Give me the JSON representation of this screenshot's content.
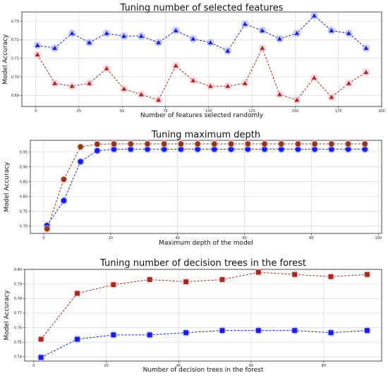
{
  "chart_data": [
    {
      "type": "line",
      "title": "Tuning number of selected features",
      "xlabel": "Number of features selected randomly",
      "ylabel": "Model Accuracy",
      "xlim": [
        -8,
        200
      ],
      "ylim": [
        0.684,
        0.735
      ],
      "xticks": [
        0,
        25,
        50,
        75,
        100,
        125,
        150,
        175,
        200
      ],
      "yticks": [
        0.69,
        0.7,
        0.71,
        0.72,
        0.73
      ],
      "ytick_labels": [
        "0.69",
        "0.70",
        "0.71",
        "0.72",
        "0.73"
      ],
      "grid": true,
      "marker": "triangle",
      "x": [
        1,
        11,
        21,
        31,
        41,
        51,
        61,
        71,
        81,
        91,
        101,
        111,
        121,
        131,
        141,
        151,
        161,
        171,
        181,
        191
      ],
      "series": [
        {
          "color": "#1f1fcf",
          "glow": "#9aa8ff",
          "values": [
            0.717,
            0.7155,
            0.7235,
            0.7185,
            0.7235,
            0.722,
            0.722,
            0.7185,
            0.725,
            0.7205,
            0.7185,
            0.714,
            0.7285,
            0.725,
            0.7205,
            0.7235,
            0.733,
            0.725,
            0.7235,
            0.7155
          ]
        },
        {
          "color": "#a02d1e",
          "glow": "#ffb6c8",
          "values": [
            0.712,
            0.6965,
            0.695,
            0.6965,
            0.7045,
            0.6935,
            0.6905,
            0.6875,
            0.706,
            0.698,
            0.695,
            0.695,
            0.6965,
            0.7155,
            0.6905,
            0.6875,
            0.6995,
            0.689,
            0.6965,
            0.7025
          ]
        }
      ]
    },
    {
      "type": "line",
      "title": "Tuning maximum depth",
      "xlabel": "Maximum depth of the model",
      "ylabel": "Model Accuracy",
      "xlim": [
        -4,
        101
      ],
      "ylim": [
        0.675,
        0.99
      ],
      "xticks": [
        0,
        20,
        40,
        60,
        80,
        100
      ],
      "yticks": [
        0.7,
        0.75,
        0.8,
        0.85,
        0.9,
        0.95
      ],
      "ytick_labels": [
        "0.70",
        "0.75",
        "0.80",
        "0.85",
        "0.90",
        "0.95"
      ],
      "grid": true,
      "marker": "circle",
      "x": [
        1,
        6,
        11,
        16,
        21,
        26,
        31,
        36,
        41,
        46,
        51,
        56,
        61,
        66,
        71,
        76,
        81,
        86,
        91,
        96
      ],
      "series": [
        {
          "color": "#1a1ae6",
          "glow": "#9aa8ff",
          "values": [
            0.702,
            0.786,
            0.918,
            0.955,
            0.96,
            0.96,
            0.96,
            0.96,
            0.96,
            0.96,
            0.96,
            0.96,
            0.96,
            0.96,
            0.96,
            0.96,
            0.96,
            0.96,
            0.96,
            0.96
          ]
        },
        {
          "color": "#8b3a14",
          "glow": "#ffb6c8",
          "values": [
            0.69,
            0.858,
            0.968,
            0.977,
            0.978,
            0.978,
            0.978,
            0.978,
            0.978,
            0.978,
            0.978,
            0.978,
            0.978,
            0.978,
            0.978,
            0.978,
            0.978,
            0.978,
            0.978,
            0.978
          ]
        }
      ]
    },
    {
      "type": "line",
      "title": "Tuning number of decision trees in the forest",
      "xlabel": "Number of decision trees in the forest",
      "ylabel": "Model Accuracy",
      "xlim": [
        -2.5,
        96
      ],
      "ylim": [
        0.737,
        0.8
      ],
      "xticks": [
        0,
        20,
        40,
        60,
        80
      ],
      "yticks": [
        0.74,
        0.75,
        0.76,
        0.77,
        0.78,
        0.79,
        0.8
      ],
      "ytick_labels": [
        "0.74",
        "0.75",
        "0.76",
        "0.77",
        "0.78",
        "0.79",
        "0.80"
      ],
      "grid": true,
      "marker": "square",
      "x": [
        2,
        12,
        22,
        32,
        42,
        52,
        62,
        72,
        82,
        92
      ],
      "series": [
        {
          "color": "#1a1ae6",
          "glow": "#9aa8ff",
          "values": [
            0.7395,
            0.752,
            0.755,
            0.755,
            0.7565,
            0.758,
            0.758,
            0.758,
            0.7565,
            0.758
          ]
        },
        {
          "color": "#a02d1e",
          "glow": "#ffb6c8",
          "values": [
            0.752,
            0.7835,
            0.7895,
            0.793,
            0.7915,
            0.793,
            0.798,
            0.7965,
            0.795,
            0.7965
          ]
        }
      ]
    }
  ]
}
